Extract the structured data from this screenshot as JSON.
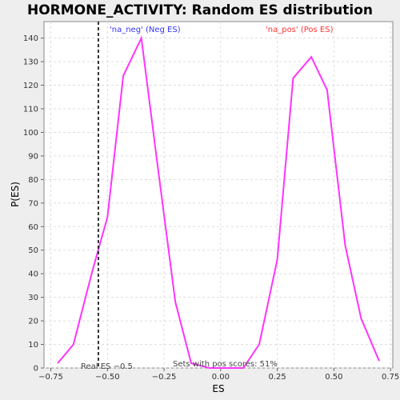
{
  "chart_data": {
    "type": "line",
    "title": "HORMONE_ACTIVITY: Random ES distribution",
    "xlabel": "ES",
    "ylabel": "P(ES)",
    "xlim": [
      -0.78,
      0.76
    ],
    "ylim": [
      0,
      147
    ],
    "x_ticks": [
      -0.75,
      -0.5,
      -0.25,
      0.0,
      0.25,
      0.5,
      0.75
    ],
    "x_tick_labels": [
      "−0.75",
      "−0.50",
      "−0.25",
      "0.00",
      "0.25",
      "0.50",
      "0.75"
    ],
    "y_ticks": [
      0,
      10,
      20,
      30,
      40,
      50,
      60,
      70,
      80,
      90,
      100,
      110,
      120,
      130,
      140
    ],
    "grid": true,
    "series": [
      {
        "color": "#ff33ff",
        "x": [
          -0.72,
          -0.65,
          -0.57,
          -0.5,
          -0.43,
          -0.35,
          -0.28,
          -0.2,
          -0.13,
          -0.05,
          0.03,
          0.1,
          0.17,
          0.25,
          0.32,
          0.4,
          0.47,
          0.55,
          0.62,
          0.7
        ],
        "y": [
          2,
          10,
          40,
          64,
          124,
          140,
          87,
          28,
          2,
          0,
          0,
          0,
          10,
          46,
          123,
          132,
          118,
          52,
          21,
          3
        ]
      }
    ],
    "real_es_line": {
      "x": -0.54,
      "color": "#333333"
    },
    "annotations": {
      "neg_label": "'na_neg' (Neg ES)",
      "neg_color": "#3333ff",
      "pos_label": "'na_pos' (Pos ES)",
      "pos_color": "#ff3333",
      "real_es_label": "Real ES −0.5",
      "sets_label": "Sets with pos scores: 51%"
    }
  }
}
